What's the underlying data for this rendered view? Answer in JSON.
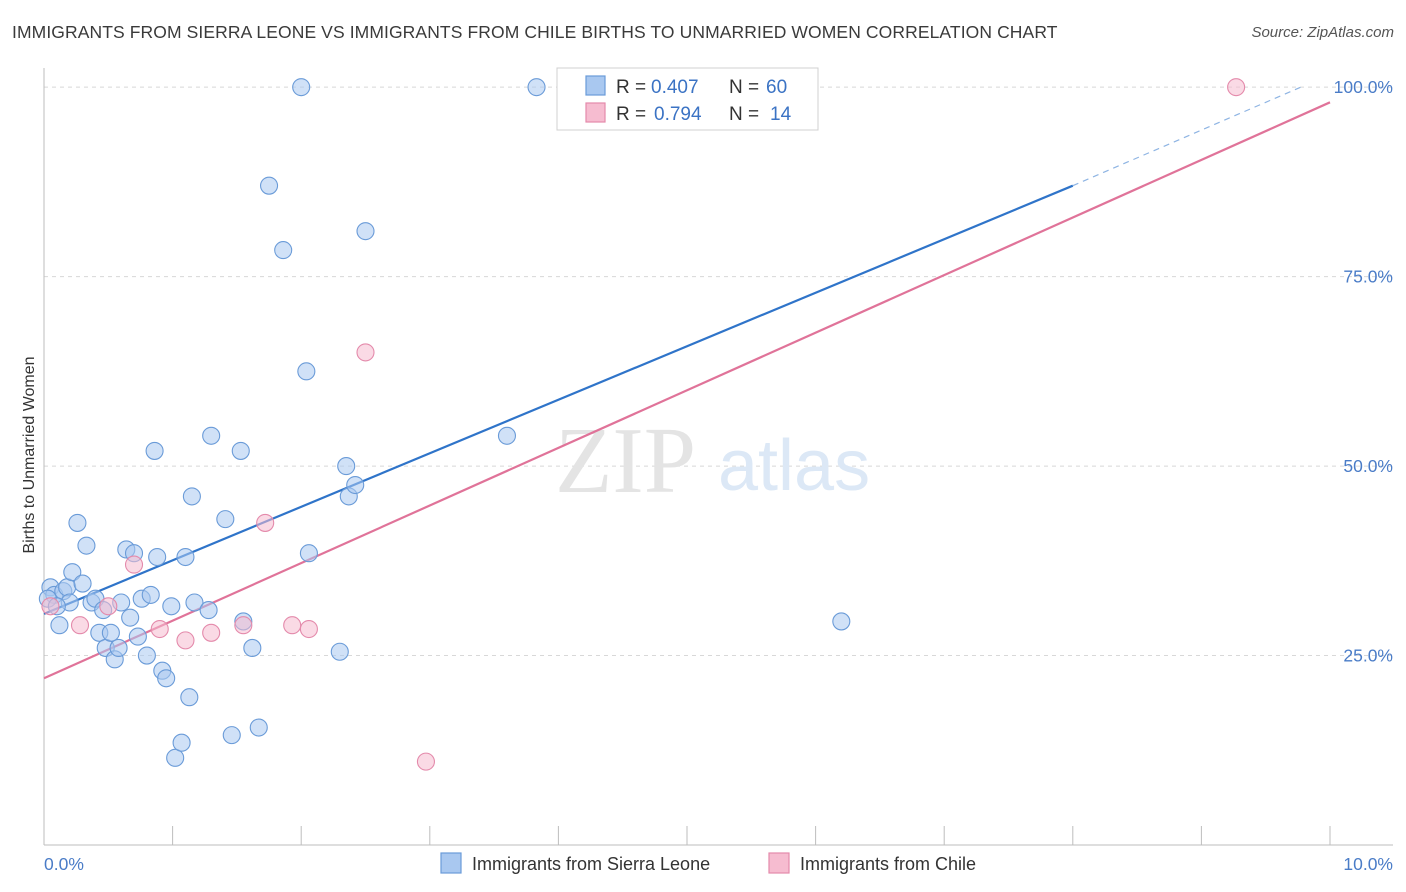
{
  "header": {
    "title": "IMMIGRANTS FROM SIERRA LEONE VS IMMIGRANTS FROM CHILE BIRTHS TO UNMARRIED WOMEN CORRELATION CHART",
    "source": "Source: ZipAtlas.com"
  },
  "watermark": {
    "zip": "ZIP",
    "atlas": "atlas"
  },
  "colors": {
    "blue_fill": "#a9c8f0",
    "blue_stroke": "#6a9bd8",
    "blue_line": "#2f74c9",
    "pink_fill": "#f6bcd0",
    "pink_stroke": "#e48aab",
    "pink_line": "#e07399",
    "tick_text": "#4a7cc7",
    "grid": "#d8d8d8"
  },
  "legend_box": {
    "rows": [
      {
        "r_label": "R =",
        "r_value": "0.407",
        "n_label": "N =",
        "n_value": "60",
        "series": "blue"
      },
      {
        "r_label": "R =",
        "r_value": "0.794",
        "n_label": "N =",
        "n_value": "14",
        "series": "pink"
      }
    ]
  },
  "chart_data": {
    "type": "scatter",
    "title": "IMMIGRANTS FROM SIERRA LEONE VS IMMIGRANTS FROM CHILE BIRTHS TO UNMARRIED WOMEN CORRELATION CHART",
    "xlabel": "",
    "ylabel": "Births to Unmarried Women",
    "xlim": [
      0,
      10
    ],
    "ylim": [
      0,
      102
    ],
    "x_ticks": [
      "0.0%",
      "10.0%"
    ],
    "y_ticks": [
      {
        "value": 25,
        "label": "25.0%"
      },
      {
        "value": 50,
        "label": "50.0%"
      },
      {
        "value": 75,
        "label": "75.0%"
      },
      {
        "value": 100,
        "label": "100.0%"
      }
    ],
    "grid": true,
    "legend_position": "bottom",
    "series": [
      {
        "name": "Immigrants from Sierra Leone",
        "color": "#a9c8f0",
        "r": 0.407,
        "n": 60,
        "trend": {
          "x0": 0,
          "y0": 30.5,
          "x1": 8.0,
          "y1": 87.0,
          "dashed_to_x": 9.8,
          "dashed_to_y": 100.2
        },
        "points": [
          [
            0.05,
            34.0
          ],
          [
            0.08,
            33.0
          ],
          [
            0.12,
            29.0
          ],
          [
            0.15,
            33.5
          ],
          [
            0.18,
            34.0
          ],
          [
            0.2,
            32.0
          ],
          [
            0.22,
            36.0
          ],
          [
            0.26,
            42.5
          ],
          [
            0.3,
            34.5
          ],
          [
            0.33,
            39.5
          ],
          [
            0.37,
            32.0
          ],
          [
            0.4,
            32.5
          ],
          [
            0.43,
            28.0
          ],
          [
            0.46,
            31.0
          ],
          [
            0.48,
            26.0
          ],
          [
            0.52,
            28.0
          ],
          [
            0.55,
            24.5
          ],
          [
            0.58,
            26.0
          ],
          [
            0.6,
            32.0
          ],
          [
            0.64,
            39.0
          ],
          [
            0.67,
            30.0
          ],
          [
            0.7,
            38.5
          ],
          [
            0.73,
            27.5
          ],
          [
            0.76,
            32.5
          ],
          [
            0.8,
            25.0
          ],
          [
            0.83,
            33.0
          ],
          [
            0.86,
            52.0
          ],
          [
            0.88,
            38.0
          ],
          [
            0.92,
            23.0
          ],
          [
            0.95,
            22.0
          ],
          [
            0.99,
            31.5
          ],
          [
            1.02,
            11.5
          ],
          [
            1.07,
            13.5
          ],
          [
            1.1,
            38.0
          ],
          [
            1.13,
            19.5
          ],
          [
            1.15,
            46.0
          ],
          [
            1.17,
            32.0
          ],
          [
            1.28,
            31.0
          ],
          [
            1.3,
            54.0
          ],
          [
            1.41,
            43.0
          ],
          [
            1.46,
            14.5
          ],
          [
            1.53,
            52.0
          ],
          [
            1.55,
            29.5
          ],
          [
            1.62,
            26.0
          ],
          [
            1.67,
            15.5
          ],
          [
            1.75,
            87.0
          ],
          [
            1.86,
            78.5
          ],
          [
            2.0,
            100.0
          ],
          [
            2.04,
            62.5
          ],
          [
            2.06,
            38.5
          ],
          [
            2.3,
            25.5
          ],
          [
            2.35,
            50.0
          ],
          [
            2.37,
            46.0
          ],
          [
            2.42,
            47.5
          ],
          [
            2.5,
            81.0
          ],
          [
            3.6,
            54.0
          ],
          [
            3.83,
            100.0
          ],
          [
            6.2,
            29.5
          ],
          [
            0.03,
            32.5
          ],
          [
            0.1,
            31.5
          ]
        ]
      },
      {
        "name": "Immigrants from Chile",
        "color": "#f6bcd0",
        "r": 0.794,
        "n": 14,
        "trend": {
          "x0": 0,
          "y0": 22.0,
          "x1": 10.0,
          "y1": 98.0
        },
        "points": [
          [
            0.05,
            31.5
          ],
          [
            0.28,
            29.0
          ],
          [
            0.5,
            31.5
          ],
          [
            0.7,
            37.0
          ],
          [
            0.9,
            28.5
          ],
          [
            1.1,
            27.0
          ],
          [
            1.3,
            28.0
          ],
          [
            1.55,
            29.0
          ],
          [
            1.72,
            42.5
          ],
          [
            1.93,
            29.0
          ],
          [
            2.06,
            28.5
          ],
          [
            2.5,
            65.0
          ],
          [
            2.97,
            11.0
          ],
          [
            9.27,
            100.0
          ]
        ]
      }
    ]
  }
}
